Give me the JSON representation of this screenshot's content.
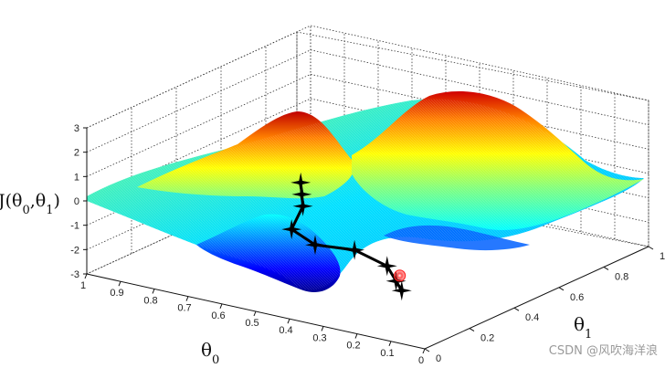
{
  "chart_data": {
    "type": "surface",
    "title": "",
    "zlabel": "J(θ0,θ1)",
    "xlabel": "θ0",
    "ylabel": "θ1",
    "z_ticks": [
      "3",
      "2",
      "1",
      "0",
      "-1",
      "-2",
      "-3"
    ],
    "theta0_ticks": [
      "1",
      "0.9",
      "0.8",
      "0.7",
      "0.6",
      "0.5",
      "0.4",
      "0.3",
      "0.2",
      "0.1",
      "0"
    ],
    "theta1_ticks": [
      "0",
      "0.2",
      "0.4",
      "0.6",
      "0.8",
      "1"
    ],
    "zlim": [
      -3,
      3
    ],
    "theta0_lim": [
      0,
      1
    ],
    "theta1_lim": [
      0,
      1
    ],
    "colormap": [
      "#00008f",
      "#0000ff",
      "#00ffff",
      "#7fff7f",
      "#ffff00",
      "#ff7f00",
      "#c00000"
    ],
    "descent_path": [
      {
        "theta0": 0.42,
        "theta1": 0.08,
        "z": 2.2
      },
      {
        "theta0": 0.43,
        "theta1": 0.1,
        "z": 1.6
      },
      {
        "theta0": 0.44,
        "theta1": 0.12,
        "z": 1.0
      },
      {
        "theta0": 0.5,
        "theta1": 0.16,
        "z": -0.3
      },
      {
        "theta0": 0.47,
        "theta1": 0.22,
        "z": -1.1
      },
      {
        "theta0": 0.38,
        "theta1": 0.26,
        "z": -1.2
      },
      {
        "theta0": 0.33,
        "theta1": 0.33,
        "z": -2.0
      },
      {
        "theta0": 0.31,
        "theta1": 0.34,
        "z": -2.6
      },
      {
        "theta0": 0.3,
        "theta1": 0.35,
        "z": -3.0
      }
    ],
    "marker_color": "#000000",
    "end_marker_color": "#ff2020"
  },
  "watermark": "CSDN @风吹海洋浪"
}
